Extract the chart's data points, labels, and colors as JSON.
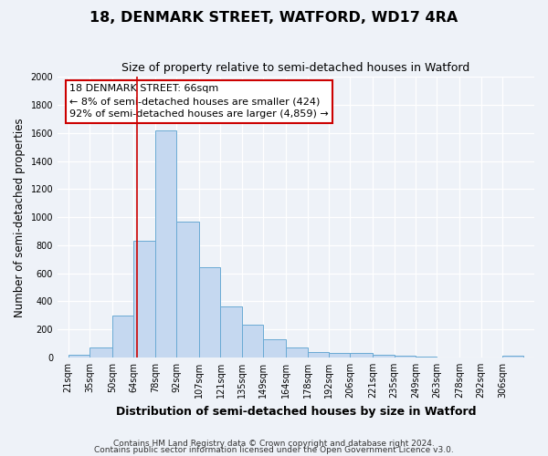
{
  "title": "18, DENMARK STREET, WATFORD, WD17 4RA",
  "subtitle": "Size of property relative to semi-detached houses in Watford",
  "xlabel": "Distribution of semi-detached houses by size in Watford",
  "ylabel": "Number of semi-detached properties",
  "bin_labels": [
    "21sqm",
    "35sqm",
    "50sqm",
    "64sqm",
    "78sqm",
    "92sqm",
    "107sqm",
    "121sqm",
    "135sqm",
    "149sqm",
    "164sqm",
    "178sqm",
    "192sqm",
    "206sqm",
    "221sqm",
    "235sqm",
    "249sqm",
    "263sqm",
    "278sqm",
    "292sqm",
    "306sqm"
  ],
  "bin_edges": [
    21,
    35,
    50,
    64,
    78,
    92,
    107,
    121,
    135,
    149,
    164,
    178,
    192,
    206,
    221,
    235,
    249,
    263,
    278,
    292,
    306
  ],
  "bar_heights": [
    20,
    70,
    300,
    830,
    1620,
    970,
    645,
    365,
    235,
    130,
    70,
    40,
    35,
    30,
    20,
    10,
    5,
    0,
    0,
    0,
    15
  ],
  "bar_color": "#c5d8f0",
  "bar_edge_color": "#6aaad4",
  "property_line_x": 66,
  "annotation_title": "18 DENMARK STREET: 66sqm",
  "annotation_line1": "← 8% of semi-detached houses are smaller (424)",
  "annotation_line2": "92% of semi-detached houses are larger (4,859) →",
  "annotation_box_color": "#ffffff",
  "annotation_box_edge": "#cc0000",
  "vline_color": "#cc0000",
  "ylim": [
    0,
    2000
  ],
  "yticks": [
    0,
    200,
    400,
    600,
    800,
    1000,
    1200,
    1400,
    1600,
    1800,
    2000
  ],
  "footnote1": "Contains HM Land Registry data © Crown copyright and database right 2024.",
  "footnote2": "Contains public sector information licensed under the Open Government Licence v3.0.",
  "bg_color": "#eef2f8",
  "grid_color": "#ffffff",
  "title_fontsize": 11.5,
  "subtitle_fontsize": 9,
  "axis_label_fontsize": 8.5,
  "tick_fontsize": 7,
  "annotation_fontsize": 8,
  "footnote_fontsize": 6.5
}
